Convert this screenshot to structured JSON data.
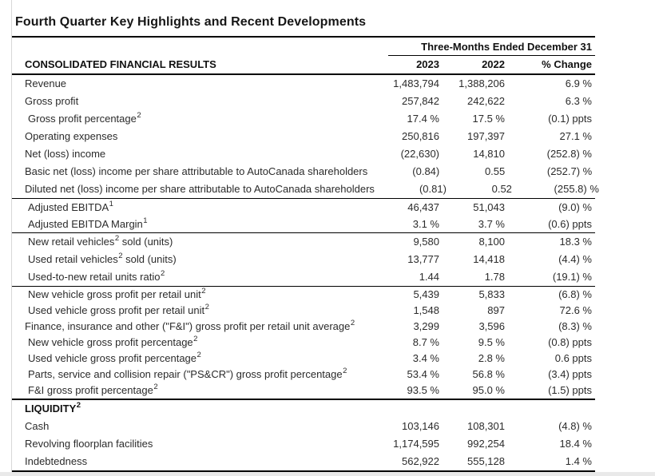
{
  "page": {
    "title": "Fourth Quarter Key Highlights and Recent Developments"
  },
  "table": {
    "period_header": "Three-Months Ended December 31",
    "columns": {
      "label": "CONSOLIDATED FINANCIAL RESULTS",
      "y2023": "2023",
      "y2022": "2022",
      "change": "% Change"
    },
    "sections": [
      {
        "rows": [
          {
            "pre": "Revenue",
            "sup": "",
            "post": "",
            "v2023": "1,483,794",
            "v2022": "1,388,206",
            "change": "6.9 %"
          },
          {
            "pre": "Gross profit",
            "sup": "",
            "post": "",
            "v2023": "257,842",
            "v2022": "242,622",
            "change": "6.3 %"
          },
          {
            "pre": "Gross profit percentage",
            "sup": "2",
            "post": "",
            "ind": 1,
            "v2023": "17.4 %",
            "v2022": "17.5 %",
            "change": "(0.1) ppts"
          },
          {
            "pre": "Operating expenses",
            "sup": "",
            "post": "",
            "v2023": "250,816",
            "v2022": "197,397",
            "change": "27.1 %"
          },
          {
            "pre": "Net (loss) income",
            "sup": "",
            "post": "",
            "v2023": "(22,630)",
            "v2022": "14,810",
            "change": "(252.8) %"
          },
          {
            "pre": "Basic net (loss) income per share attributable to AutoCanada shareholders",
            "sup": "",
            "post": "",
            "v2023": "(0.84)",
            "v2022": "0.55",
            "change": "(252.7) %"
          },
          {
            "pre": "Diluted net (loss) income per share attributable to AutoCanada shareholders",
            "sup": "",
            "post": "",
            "v2023": "(0.81)",
            "v2022": "0.52",
            "change": "(255.8) %"
          }
        ]
      },
      {
        "rows": [
          {
            "pre": "Adjusted EBITDA",
            "sup": "1",
            "post": "",
            "ind": 1,
            "v2023": "46,437",
            "v2022": "51,043",
            "change": "(9.0) %"
          },
          {
            "pre": "Adjusted EBITDA Margin",
            "sup": "1",
            "post": "",
            "ind": 1,
            "v2023": "3.1 %",
            "v2022": "3.7 %",
            "change": "(0.6) ppts"
          }
        ]
      },
      {
        "rows": [
          {
            "pre": "New retail vehicles",
            "sup": "2",
            "post": " sold (units)",
            "ind": 1,
            "v2023": "9,580",
            "v2022": "8,100",
            "change": "18.3 %"
          },
          {
            "pre": "Used retail vehicles",
            "sup": "2",
            "post": " sold (units)",
            "ind": 1,
            "v2023": "13,777",
            "v2022": "14,418",
            "change": "(4.4) %"
          },
          {
            "pre": "Used-to-new retail units ratio",
            "sup": "2",
            "post": "",
            "ind": 1,
            "v2023": "1.44",
            "v2022": "1.78",
            "change": "(19.1) %"
          }
        ]
      },
      {
        "rows": [
          {
            "pre": "New vehicle gross profit per retail unit",
            "sup": "2",
            "post": "",
            "ind": 1,
            "v2023": "5,439",
            "v2022": "5,833",
            "change": "(6.8) %"
          },
          {
            "pre": "Used vehicle gross profit per retail unit",
            "sup": "2",
            "post": "",
            "ind": 1,
            "v2023": "1,548",
            "v2022": "897",
            "change": "72.6 %"
          },
          {
            "pre": "Finance, insurance and other (\"F&I\") gross profit per retail unit average",
            "sup": "2",
            "post": "",
            "v2023": "3,299",
            "v2022": "3,596",
            "change": "(8.3) %"
          },
          {
            "pre": "New vehicle gross profit percentage",
            "sup": "2",
            "post": "",
            "ind": 1,
            "v2023": "8.7 %",
            "v2022": "9.5 %",
            "change": "(0.8) ppts"
          },
          {
            "pre": "Used vehicle gross profit percentage",
            "sup": "2",
            "post": "",
            "ind": 1,
            "v2023": "3.4 %",
            "v2022": "2.8 %",
            "change": "0.6 ppts"
          },
          {
            "pre": "Parts, service and collision repair (\"PS&CR\") gross profit percentage",
            "sup": "2",
            "post": "",
            "ind": 1,
            "v2023": "53.4 %",
            "v2022": "56.8 %",
            "change": "(3.4) ppts"
          },
          {
            "pre": "F&I gross profit percentage",
            "sup": "2",
            "post": "",
            "ind": 1,
            "v2023": "93.5 %",
            "v2022": "95.0 %",
            "change": "(1.5) ppts"
          }
        ]
      },
      {
        "rows": [
          {
            "pre": "LIQUIDITY",
            "sup": "2",
            "post": "",
            "bold": 1,
            "v2023": "",
            "v2022": "",
            "change": ""
          },
          {
            "pre": "Cash",
            "sup": "",
            "post": "",
            "v2023": "103,146",
            "v2022": "108,301",
            "change": "(4.8) %"
          },
          {
            "pre": "Revolving floorplan facilities",
            "sup": "",
            "post": "",
            "v2023": "1,174,595",
            "v2022": "992,254",
            "change": "18.4 %"
          },
          {
            "pre": "Indebtedness",
            "sup": "",
            "post": "",
            "v2023": "562,922",
            "v2022": "555,128",
            "change": "1.4 %"
          }
        ]
      }
    ]
  }
}
